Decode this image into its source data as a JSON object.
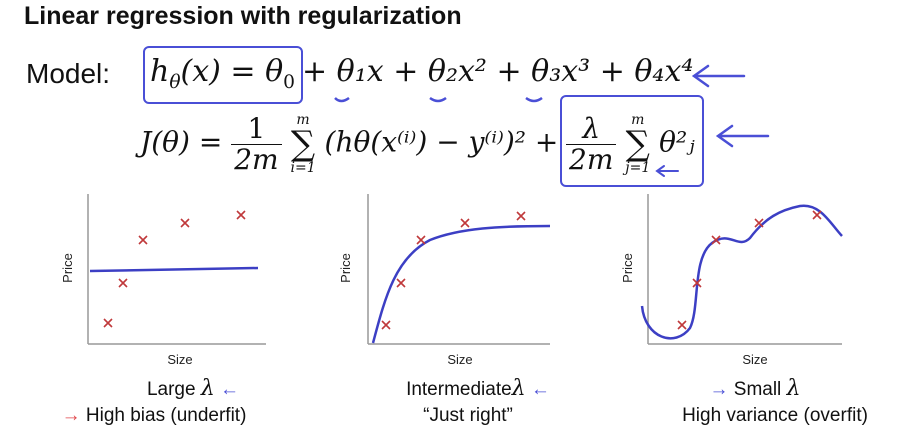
{
  "title": "Linear regression with regularization",
  "model_label": "Model:",
  "hypothesis_lhs": "h",
  "hypothesis_sub": "θ",
  "hypothesis_arg": "(x) = θ",
  "hypothesis_0": "0",
  "hypothesis_rest": "+ θ₁x + θ₂x² + θ₃x³ + θ₄x⁴",
  "cost": {
    "lhs": "J(θ) =",
    "frac_num": "1",
    "frac_den": "2m",
    "sum_top": "m",
    "sum_bot": "i=1",
    "body": "(hθ(x⁽ⁱ⁾) − y⁽ⁱ⁾)² +"
  },
  "reg": {
    "frac_num": "λ",
    "frac_den": "2m",
    "sum_top": "m",
    "sum_bot": "j=1",
    "body": "θ²ⱼ"
  },
  "plots": [
    {
      "xlabel": "Size",
      "ylabel": "Price",
      "caption_main": "Large ",
      "caption_lambda": "λ",
      "caption_sub": "High bias (underfit)"
    },
    {
      "xlabel": "Size",
      "ylabel": "Price",
      "caption_main": "Intermediate",
      "caption_lambda": "λ",
      "caption_sub": "“Just right”"
    },
    {
      "xlabel": "Size",
      "ylabel": "Price",
      "caption_main": "Small ",
      "caption_lambda": "λ",
      "caption_sub": "High variance (overfit)"
    }
  ],
  "colors": {
    "ink": "#4a4fd6",
    "points": "#c0393b",
    "red_arrow": "#e0464a"
  },
  "icons": {
    "arrow_left": "←",
    "arrow_right": "→"
  }
}
